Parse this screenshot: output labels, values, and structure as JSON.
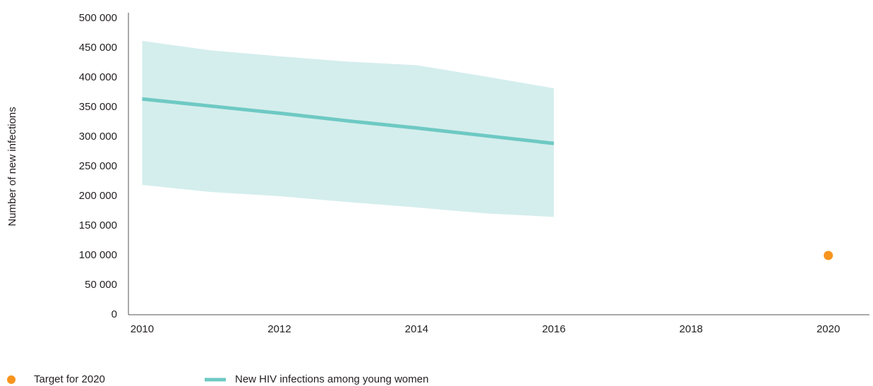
{
  "chart_data": {
    "type": "line",
    "y_axis_label": "Number of new infections",
    "x": [
      2010,
      2011,
      2012,
      2013,
      2014,
      2015,
      2016
    ],
    "series": [
      {
        "name": "New HIV infections among young women",
        "color": "#6ec9c3",
        "values": [
          364000,
          352000,
          340000,
          327000,
          315000,
          302000,
          289000
        ]
      }
    ],
    "band": {
      "color": "#d4eeed",
      "upper": [
        462000,
        446000,
        436000,
        427000,
        421000,
        402000,
        382000
      ],
      "lower": [
        219000,
        207000,
        200000,
        190000,
        181000,
        171000,
        165000
      ]
    },
    "target": {
      "name": "Target for 2020",
      "x": 2020,
      "value": 100000,
      "color": "#f7941d"
    },
    "xlim": [
      2009.8,
      2020.6
    ],
    "xticks": [
      2010,
      2012,
      2014,
      2016,
      2018,
      2020
    ],
    "ylim": [
      0,
      500000
    ],
    "yticks": [
      0,
      {
        "value": 50000,
        "label": "50 000"
      },
      {
        "value": 100000,
        "label": "100 000"
      },
      {
        "value": 150000,
        "label": "150 000"
      },
      {
        "value": 200000,
        "label": "200 000"
      },
      {
        "value": 250000,
        "label": "250 000"
      },
      {
        "value": 300000,
        "label": "300 000"
      },
      {
        "value": 350000,
        "label": "350 000"
      },
      {
        "value": 400000,
        "label": "400 000"
      },
      {
        "value": 450000,
        "label": "450 000"
      },
      {
        "value": 500000,
        "label": "500 000"
      }
    ],
    "grid": false
  }
}
